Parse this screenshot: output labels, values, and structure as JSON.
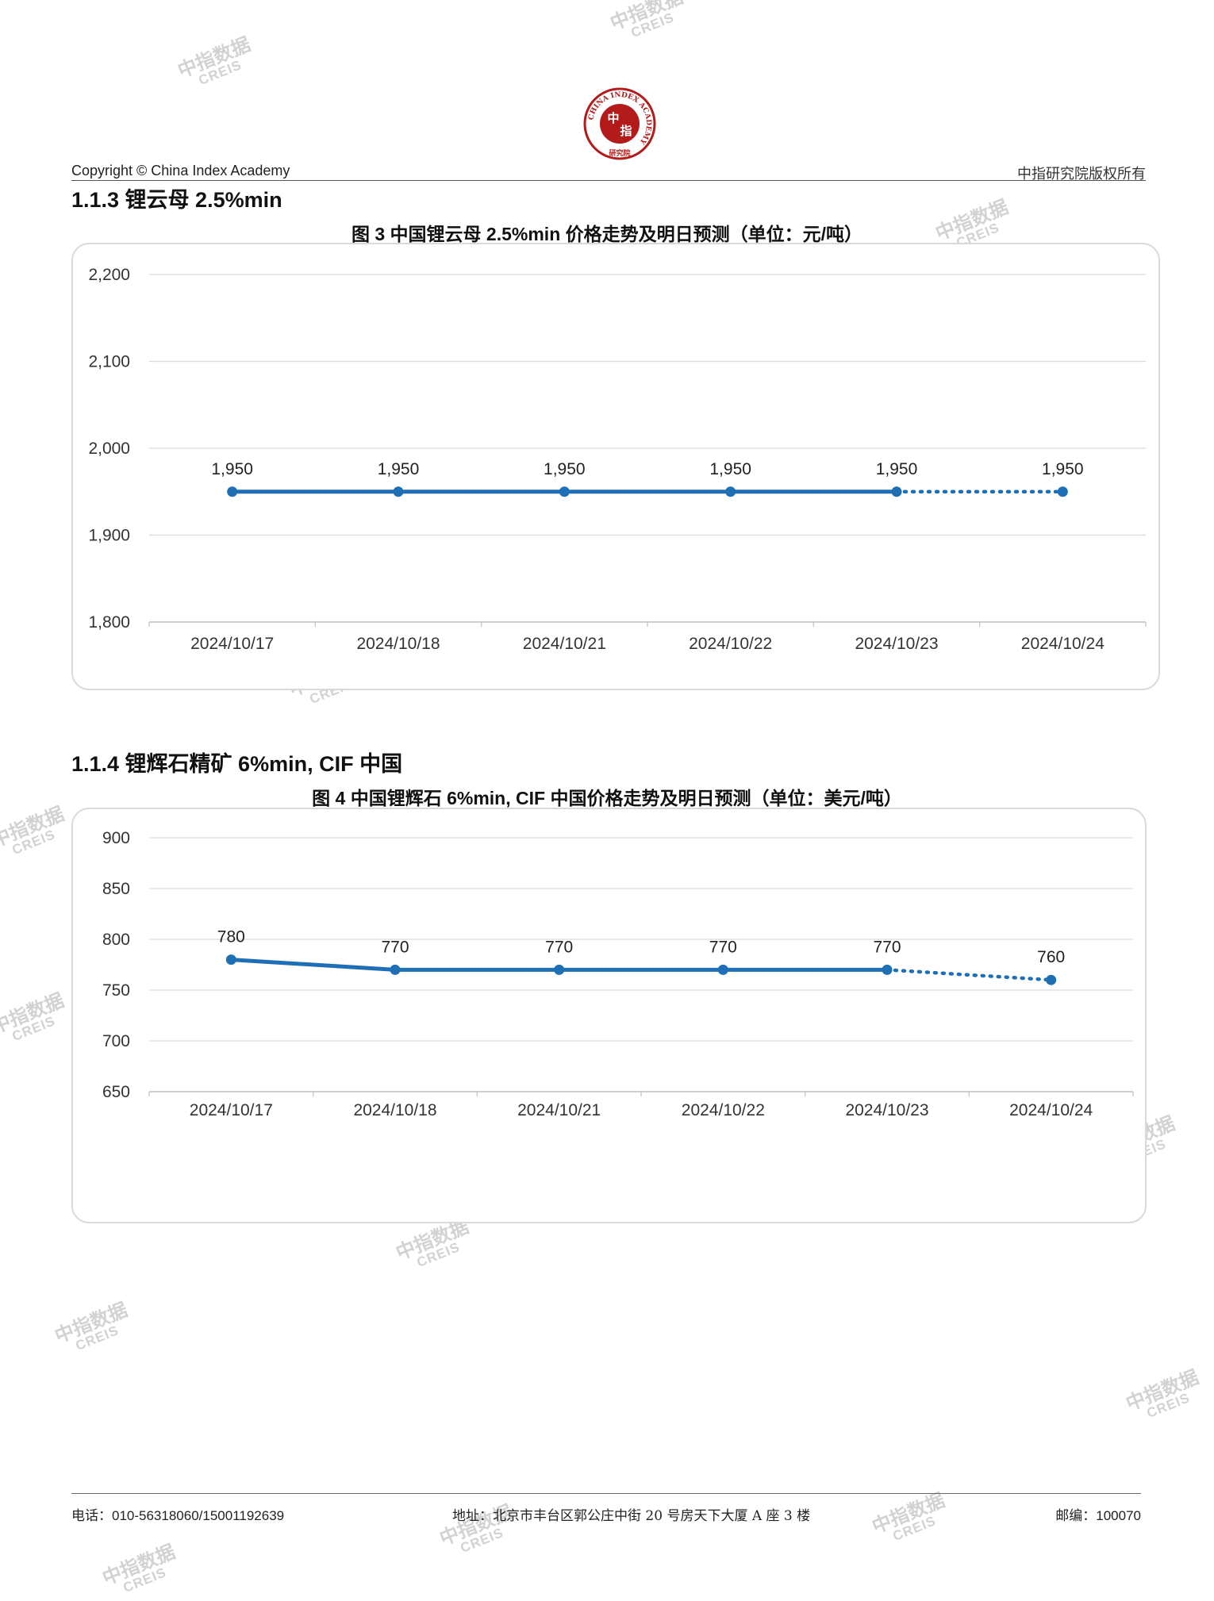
{
  "header": {
    "copyright": "Copyright © China Index Academy",
    "rights": "中指研究院版权所有",
    "logo": {
      "ring_text": "CHINA INDEX ACADEMY",
      "center_text_1": "中",
      "center_text_2": "指",
      "bottom_text": "研究院",
      "color": "#b31b1b"
    }
  },
  "sections": [
    {
      "title": "1.1.3 锂云母 2.5%min",
      "figure_title": "图 3 中国锂云母 2.5%min 价格走势及明日预测（单位：元/吨）"
    },
    {
      "title": "1.1.4 锂辉石精矿 6%min, CIF 中国",
      "figure_title": "图 4 中国锂辉石 6%min, CIF 中国价格走势及明日预测（单位：美元/吨）"
    }
  ],
  "chart_data": [
    {
      "type": "line",
      "title": "图 3 中国锂云母 2.5%min 价格走势及明日预测（单位：元/吨）",
      "categories": [
        "2024/10/17",
        "2024/10/18",
        "2024/10/21",
        "2024/10/22",
        "2024/10/23",
        "2024/10/24"
      ],
      "values": [
        1950,
        1950,
        1950,
        1950,
        1950,
        1950
      ],
      "data_labels": [
        "1,950",
        "1,950",
        "1,950",
        "1,950",
        "1,950",
        "1,950"
      ],
      "forecast_from_index": 4,
      "ylim": [
        1800,
        2200
      ],
      "yticks": [
        1800,
        1900,
        2000,
        2100,
        2200
      ],
      "ytick_labels": [
        "1,800",
        "1,900",
        "2,000",
        "2,100",
        "2,200"
      ],
      "grid": true,
      "line_color": "#1f6fb5"
    },
    {
      "type": "line",
      "title": "图 4 中国锂辉石 6%min, CIF 中国价格走势及明日预测（单位：美元/吨）",
      "categories": [
        "2024/10/17",
        "2024/10/18",
        "2024/10/21",
        "2024/10/22",
        "2024/10/23",
        "2024/10/24"
      ],
      "values": [
        780,
        770,
        770,
        770,
        770,
        760
      ],
      "data_labels": [
        "780",
        "770",
        "770",
        "770",
        "770",
        "760"
      ],
      "forecast_from_index": 4,
      "ylim": [
        650,
        900
      ],
      "yticks": [
        650,
        700,
        750,
        800,
        850,
        900
      ],
      "ytick_labels": [
        "650",
        "700",
        "750",
        "800",
        "850",
        "900"
      ],
      "grid": true,
      "line_color": "#1f6fb5"
    }
  ],
  "watermark": {
    "line1": "中指数据",
    "line2": "CREIS"
  },
  "footer": {
    "phone": "电话：010-56318060/15001192639",
    "address": "地址：北京市丰台区郭公庄中街 20 号房天下大厦 A 座 3 楼",
    "postcode": "邮编：100070"
  }
}
